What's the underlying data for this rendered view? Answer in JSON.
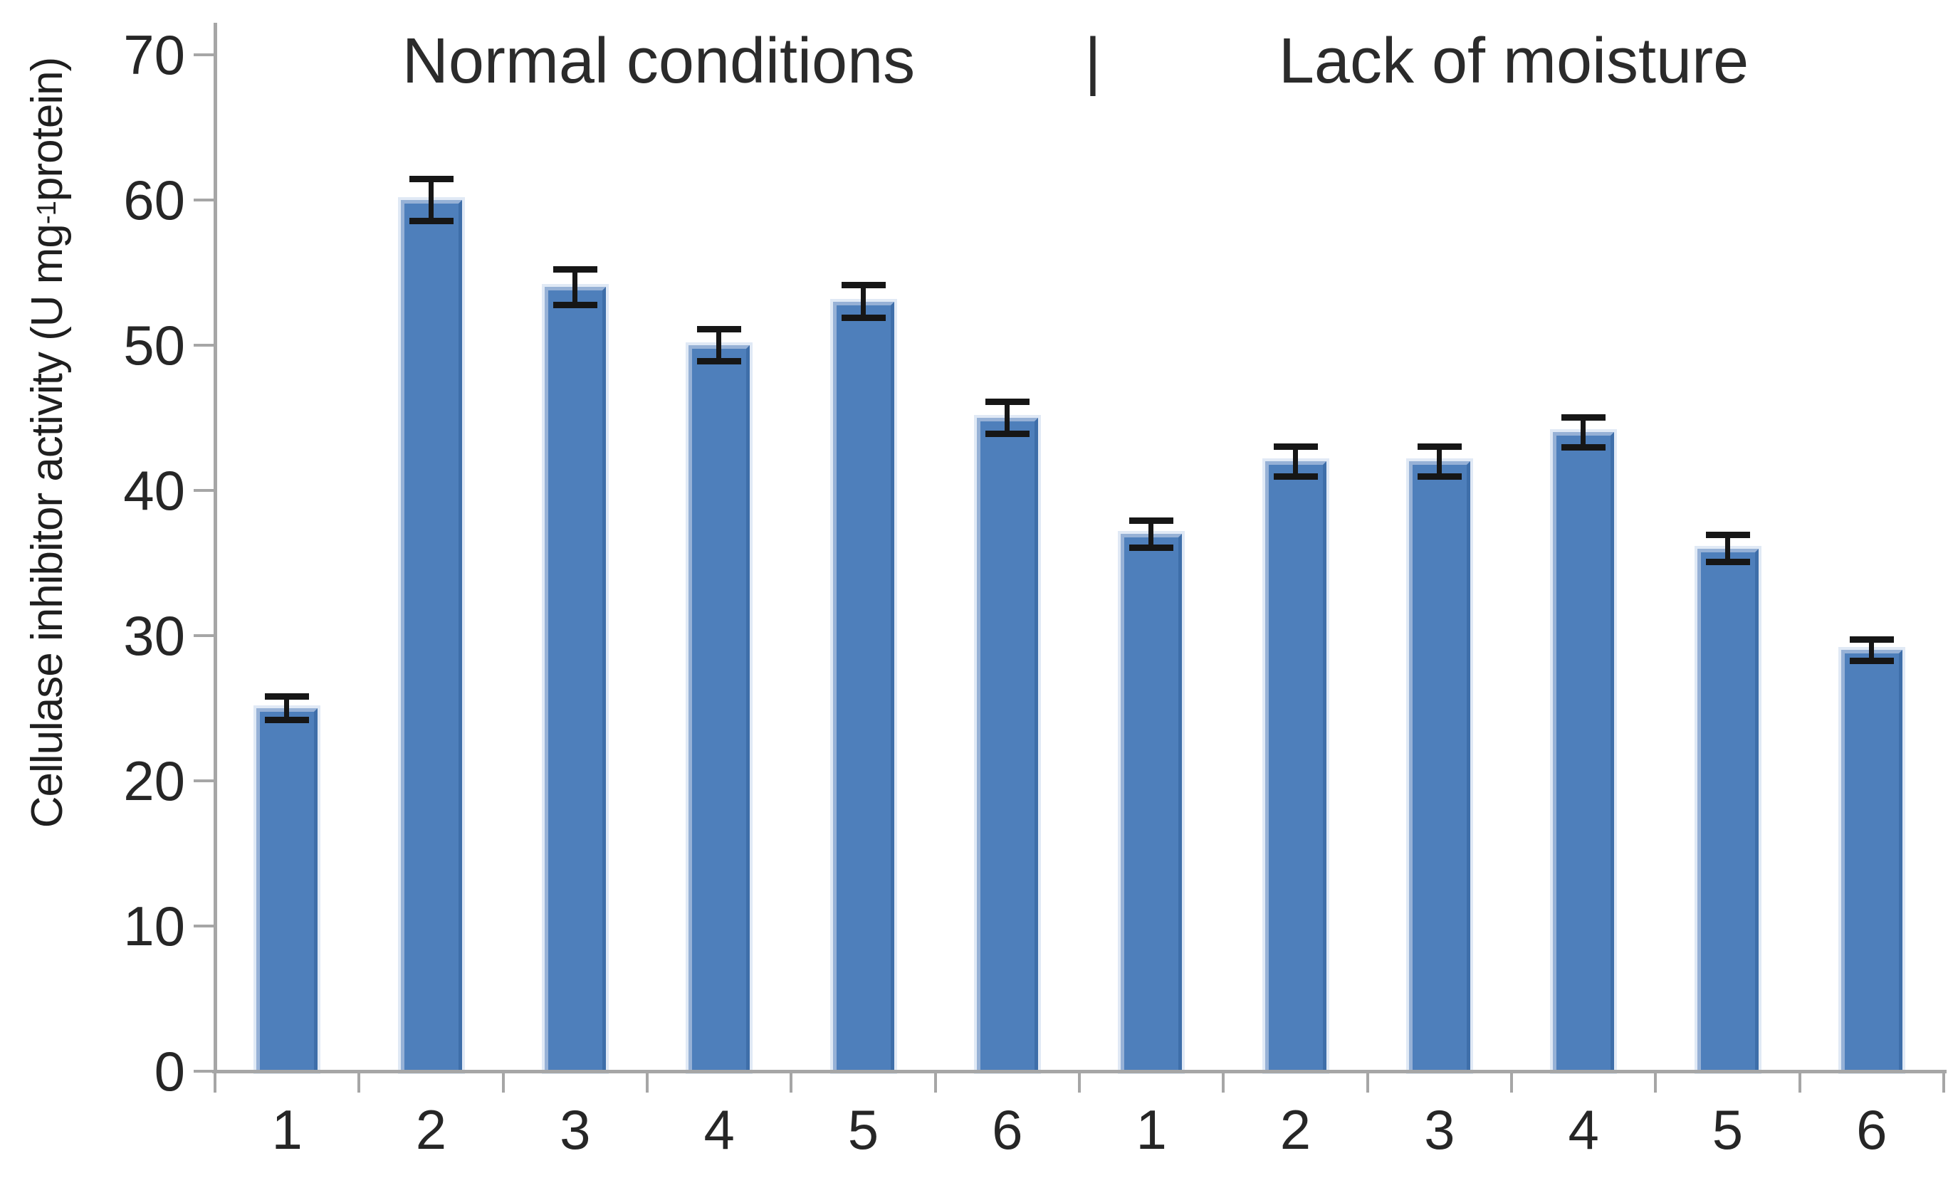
{
  "chart_data": {
    "type": "bar",
    "group_titles": [
      "Normal conditions",
      "Lack of moisture"
    ],
    "separator": "|",
    "ylabel": {
      "pre": "Cellulase inhibitor activity (U mg",
      "sup": "-1",
      "post": " protein)"
    },
    "ylim": [
      0,
      70
    ],
    "yticks": [
      0,
      10,
      20,
      30,
      40,
      50,
      60,
      70
    ],
    "grid": false,
    "legend": null,
    "series": [
      {
        "name": "Normal conditions",
        "categories": [
          "1",
          "2",
          "3",
          "4",
          "5",
          "6"
        ],
        "values": [
          25,
          60,
          54,
          50,
          53,
          45
        ],
        "errors": [
          0.8,
          1.4,
          1.2,
          1.1,
          1.1,
          1.1
        ]
      },
      {
        "name": "Lack of moisture",
        "categories": [
          "1",
          "2",
          "3",
          "4",
          "5",
          "6"
        ],
        "values": [
          37,
          42,
          42,
          44,
          36,
          29
        ],
        "errors": [
          0.9,
          1.0,
          1.0,
          1.0,
          0.9,
          0.7
        ]
      }
    ],
    "colors": {
      "bar_fill": "#4e7fbb",
      "bar_edge_light": "#96b1d6",
      "bar_edge_dark": "#3e6ea9",
      "bar_halo": "rgba(203,219,238,0.6)",
      "axis": "#a6a6a6",
      "error_bar": "#161616",
      "text": "#262626"
    }
  }
}
